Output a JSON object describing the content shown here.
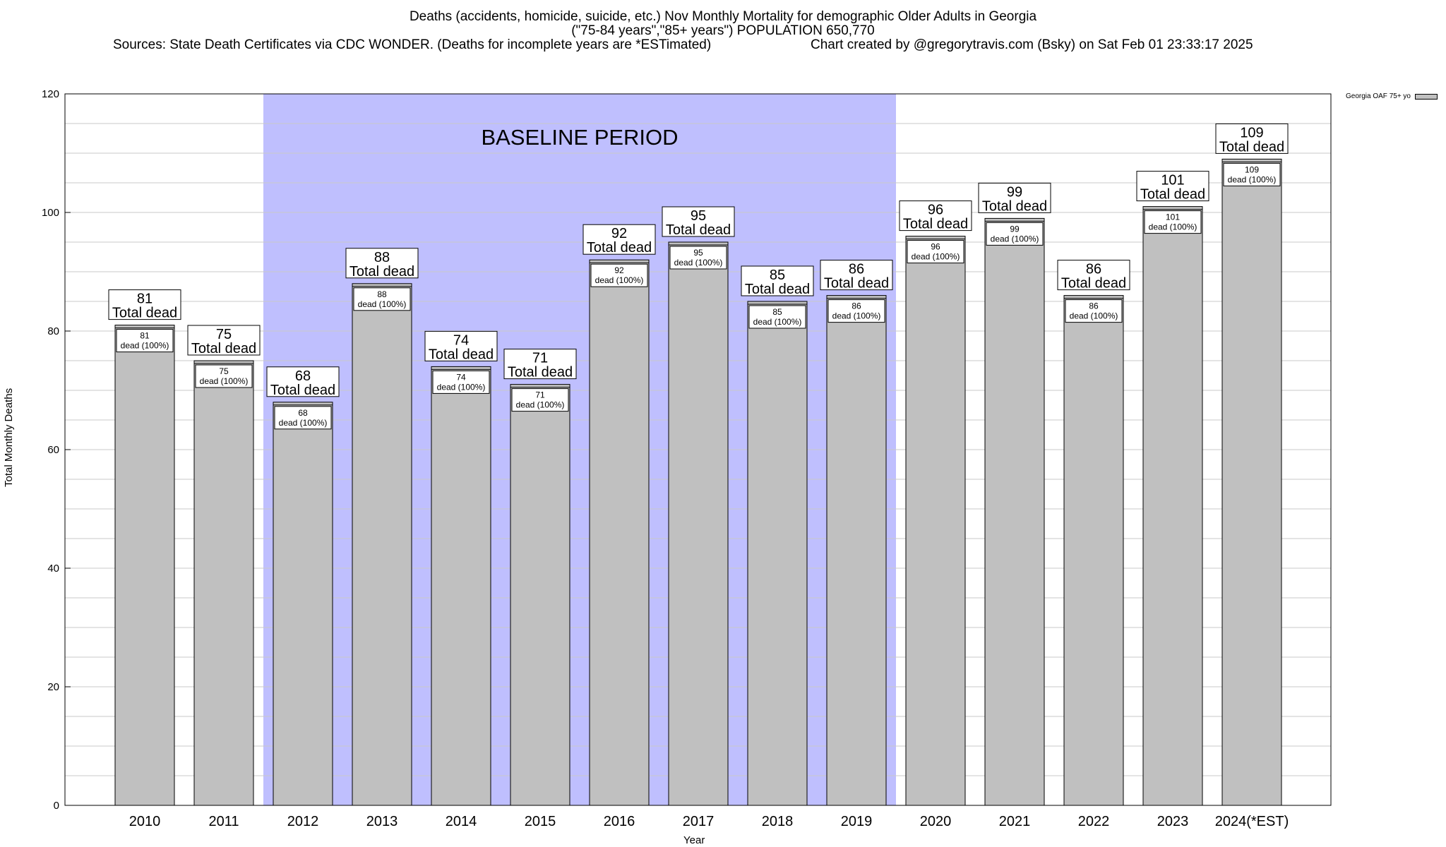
{
  "chart_data": {
    "type": "bar",
    "title": "Deaths (accidents, homicide, suicide, etc.) Nov Monthly Mortality for demographic Older Adults in Georgia",
    "subtitle_line2": "(\"75-84 years\",\"85+ years\") POPULATION 650,770",
    "sources": "Sources: State Death Certificates via CDC WONDER. (Deaths for incomplete years are *ESTimated)",
    "credit": "Chart created by @gregorytravis.com (Bsky) on Sat Feb 01 23:33:17 2025",
    "xlabel": "Year",
    "ylabel": "Total Monthly Deaths",
    "ylim": [
      0,
      120
    ],
    "yticks": [
      0,
      20,
      40,
      60,
      80,
      100,
      120
    ],
    "grid": true,
    "legend_position": "top-right",
    "legend_label": "Georgia OAF 75+ yo",
    "categories": [
      "2010",
      "2011",
      "2012",
      "2013",
      "2014",
      "2015",
      "2016",
      "2017",
      "2018",
      "2019",
      "2020",
      "2021",
      "2022",
      "2023",
      "2024(*EST)"
    ],
    "series": [
      {
        "name": "Georgia OAF 75+ yo",
        "values": [
          81,
          75,
          68,
          88,
          74,
          71,
          92,
          95,
          85,
          86,
          96,
          99,
          86,
          101,
          109
        ]
      }
    ],
    "total_label": "Total dead",
    "inner_label": "dead (100%)",
    "baseline_label": "BASELINE PERIOD",
    "baseline_range": [
      "2012",
      "2019"
    ],
    "colors": {
      "bar": "#c0c0c0",
      "baseline": "#bfbffe",
      "grid": "#c8c8c8"
    }
  }
}
